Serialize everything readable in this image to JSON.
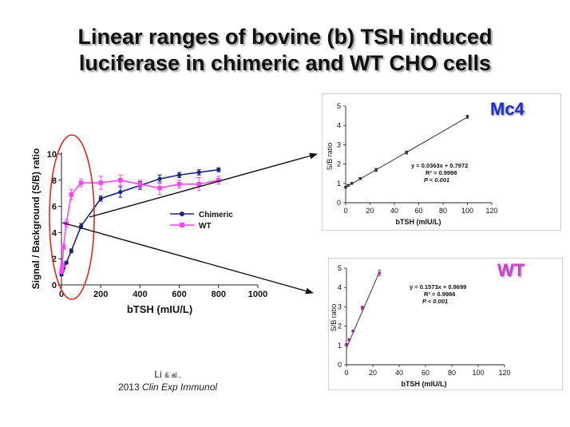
{
  "slide": {
    "title_line1": "Linear ranges of bovine (b) TSH induced",
    "title_line2": "luciferase in chimeric and WT CHO cells",
    "citation_author": "Li",
    "citation_etal": "& al.,",
    "citation_year": "2013",
    "citation_journal": "Clin Exp Immunol",
    "colors": {
      "chimeric": "#1a237e",
      "wt": "#ff44ff",
      "wt_inset": "#a020a0",
      "highlight": "#e8241c",
      "mc4_label": "#1a2fd8",
      "wt_label": "#d83ad8"
    }
  },
  "chart_data": [
    {
      "id": "main",
      "type": "line",
      "xlabel": "bTSH (mIU/L)",
      "ylabel": "Signal / Background (S/B) ratio",
      "xlim": [
        0,
        1000
      ],
      "ylim": [
        0,
        10
      ],
      "xticks": [
        "0",
        "200",
        "400",
        "600",
        "800",
        "1000"
      ],
      "yticks": [
        "0",
        "2",
        "4",
        "6",
        "8",
        "10"
      ],
      "legend_position": "right",
      "series": [
        {
          "name": "Chimeric",
          "marker": "circle",
          "x": [
            0,
            2,
            5,
            10,
            25,
            50,
            100,
            200,
            300,
            400,
            500,
            600,
            700,
            800
          ],
          "y": [
            0.8,
            1.0,
            1.1,
            1.3,
            1.7,
            2.6,
            4.5,
            6.6,
            7.1,
            7.6,
            8.1,
            8.4,
            8.6,
            8.8
          ],
          "err": [
            0.1,
            0.1,
            0.1,
            0.1,
            0.1,
            0.15,
            0.2,
            0.2,
            0.4,
            0.3,
            0.3,
            0.2,
            0.2,
            0.15
          ]
        },
        {
          "name": "WT",
          "marker": "square",
          "x": [
            0,
            2,
            5,
            10,
            25,
            50,
            100,
            200,
            300,
            400,
            500,
            600,
            700,
            800
          ],
          "y": [
            1.0,
            1.2,
            1.5,
            2.9,
            4.7,
            6.9,
            7.8,
            7.8,
            8.0,
            7.7,
            7.4,
            7.7,
            7.7,
            8.0
          ],
          "err": [
            0.1,
            0.1,
            0.2,
            0.2,
            0.3,
            0.4,
            0.3,
            0.5,
            0.4,
            0.3,
            0.5,
            0.3,
            0.5,
            0.3
          ]
        }
      ]
    },
    {
      "id": "mc4",
      "label": "Mc4",
      "type": "scatter",
      "xlabel": "bTSH (mIU/L)",
      "ylabel": "S/B ratio",
      "xlim": [
        0,
        120
      ],
      "ylim": [
        0,
        5
      ],
      "xticks": [
        "0",
        "20",
        "40",
        "60",
        "80",
        "100",
        "120"
      ],
      "yticks": [
        "0",
        "1",
        "2",
        "3",
        "4",
        "5"
      ],
      "points": {
        "x": [
          0,
          2,
          5,
          12,
          25,
          50,
          100
        ],
        "y": [
          0.8,
          0.9,
          1.0,
          1.25,
          1.7,
          2.6,
          4.45
        ]
      },
      "err": [
        0.05,
        0.05,
        0.05,
        0.05,
        0.08,
        0.08,
        0.08
      ],
      "fit": {
        "slope": 0.0363,
        "intercept": 0.7972
      },
      "annotation": [
        "y = 0.0363x + 0.7972",
        "R² = 0.9998",
        "P < 0.001"
      ]
    },
    {
      "id": "wt",
      "label": "WT",
      "type": "scatter",
      "xlabel": "bTSH (mIU/L)",
      "ylabel": "S/B ratio",
      "xlim": [
        0,
        120
      ],
      "ylim": [
        0,
        5
      ],
      "xticks": [
        "0",
        "20",
        "40",
        "60",
        "80",
        "100",
        "120"
      ],
      "yticks": [
        "0",
        "1",
        "2",
        "3",
        "4",
        "5"
      ],
      "points": {
        "x": [
          0,
          2,
          5,
          12,
          25
        ],
        "y": [
          1.05,
          1.3,
          1.75,
          2.95,
          4.75
        ]
      },
      "err": [
        0.05,
        0.05,
        0.05,
        0.08,
        0.15
      ],
      "fit": {
        "slope": 0.1573,
        "intercept": 0.8699
      },
      "annotation": [
        "y = 0.1573x + 0.8699",
        "R² = 0.9986",
        "P < 0.001"
      ]
    }
  ]
}
